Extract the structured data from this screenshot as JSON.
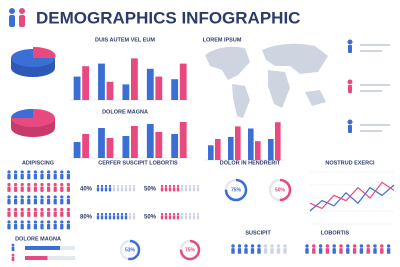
{
  "header": {
    "title": "DEMOGRAPHICS INFOGRAPHIC"
  },
  "sections": {
    "adipiscing": "ADIPISCING",
    "suscipit": "SUSCIPIT",
    "lobortis": "LOBORTIS"
  },
  "chart_data": [
    {
      "type": "bar",
      "title": "DUIS AUTEM VEL EUM",
      "categories": [
        null,
        null,
        null,
        null,
        null
      ],
      "ylim": [
        0,
        100
      ],
      "series": [
        {
          "color": "#3b6fd6",
          "values": [
            45,
            70,
            30,
            60,
            40
          ]
        },
        {
          "color": "#e84a80",
          "values": [
            65,
            35,
            80,
            45,
            70
          ]
        }
      ]
    },
    {
      "type": "bar",
      "title": "DOLORE MAGNA",
      "categories": [
        null,
        null,
        null,
        null,
        null
      ],
      "ylim": [
        0,
        100
      ],
      "series": [
        {
          "color": "#3b6fd6",
          "values": [
            40,
            75,
            55,
            85,
            60
          ]
        },
        {
          "color": "#e84a80",
          "values": [
            60,
            50,
            80,
            65,
            90
          ]
        }
      ]
    },
    {
      "type": "bar",
      "title": "LOREM IPSUM",
      "categories": [
        null,
        null,
        null,
        null
      ],
      "ylim": [
        0,
        100
      ],
      "series": [
        {
          "color": "#3b6fd6",
          "values": [
            35,
            55,
            75,
            50
          ]
        },
        {
          "color": "#e84a80",
          "values": [
            50,
            80,
            45,
            90
          ]
        }
      ]
    },
    {
      "type": "line",
      "title": "NOSTRUD EXERCI",
      "categories": [
        null,
        null,
        null,
        null,
        null,
        null,
        null,
        null
      ],
      "ylim": [
        0,
        100
      ],
      "series": [
        {
          "color": "#3b6fd6",
          "values": [
            25,
            45,
            35,
            60,
            40,
            70,
            55,
            75
          ]
        },
        {
          "color": "#e84a80",
          "values": [
            40,
            30,
            55,
            45,
            70,
            50,
            80,
            65
          ]
        }
      ]
    },
    {
      "type": "donut",
      "title": "DOLOR IN HENDRERIT",
      "values": [
        75,
        50
      ],
      "value_labels": [
        "75%",
        "50%"
      ],
      "colors": [
        "#3b6fd6",
        "#e84a80"
      ]
    },
    {
      "type": "icon-grid",
      "title": "CERFER SUSCIPIT LOBORTIS",
      "values": [
        40,
        50,
        80,
        50
      ],
      "value_labels": [
        "40%",
        "50%",
        "80%",
        "50%"
      ],
      "colors": [
        "#3b6fd6",
        "#e84a80",
        "#3b6fd6",
        "#e84a80"
      ]
    },
    {
      "type": "hbar",
      "title": "DOLORE MAGNA",
      "values": [
        70,
        45
      ],
      "xlim": [
        0,
        100
      ],
      "colors": [
        "#3b6fd6",
        "#e84a80"
      ]
    },
    {
      "type": "donut",
      "values": [
        53,
        75
      ],
      "value_labels": [
        "53%",
        "75%"
      ],
      "colors": [
        "#3b6fd6",
        "#e84a80"
      ]
    }
  ]
}
